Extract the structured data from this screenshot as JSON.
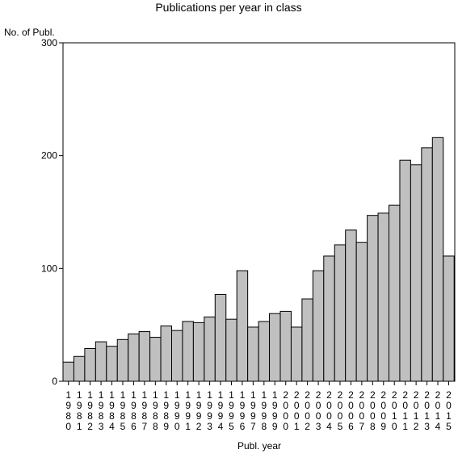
{
  "chart_data": {
    "type": "bar",
    "title": "Publications per year in class",
    "ylabel": "No. of Publ.",
    "xlabel": "Publ. year",
    "ylim": [
      0,
      300
    ],
    "yticks": [
      0,
      100,
      200,
      300
    ],
    "categories": [
      "1980",
      "1981",
      "1982",
      "1983",
      "1984",
      "1985",
      "1986",
      "1987",
      "1988",
      "1989",
      "1990",
      "1991",
      "1992",
      "1993",
      "1994",
      "1995",
      "1996",
      "1997",
      "1998",
      "1999",
      "2000",
      "2001",
      "2002",
      "2003",
      "2004",
      "2005",
      "2006",
      "2007",
      "2008",
      "2009",
      "2010",
      "2011",
      "2012",
      "2013",
      "2014",
      "2015"
    ],
    "values": [
      17,
      22,
      29,
      35,
      31,
      37,
      42,
      44,
      39,
      49,
      45,
      53,
      52,
      57,
      77,
      55,
      98,
      48,
      53,
      60,
      62,
      48,
      73,
      98,
      111,
      121,
      134,
      123,
      147,
      149,
      156,
      196,
      192,
      207,
      216,
      111
    ],
    "colors": {
      "bar": "#c0c0c0",
      "stroke": "#000000",
      "background": "#ffffff"
    },
    "grid": false,
    "legend": "none"
  }
}
